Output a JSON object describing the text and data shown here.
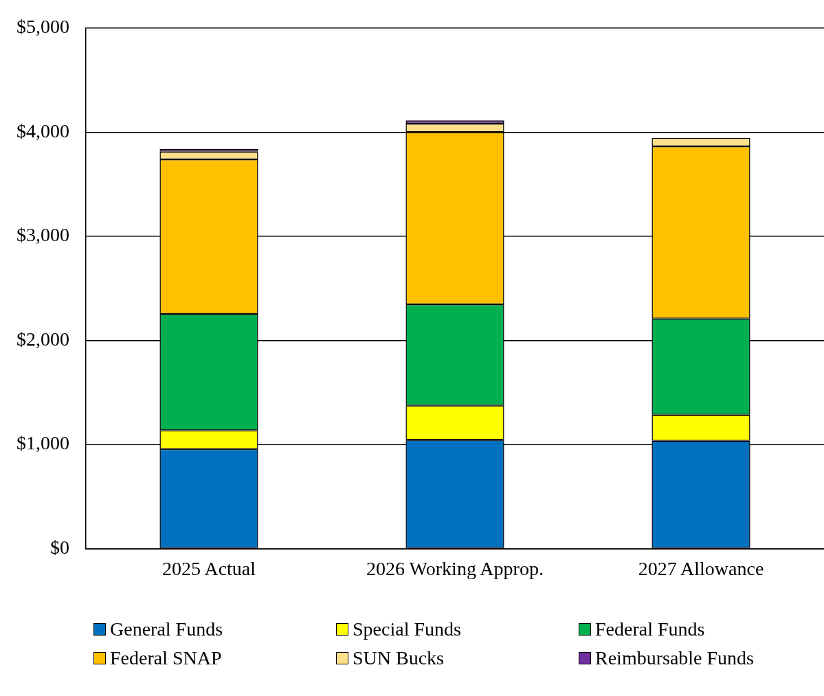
{
  "chart_data": {
    "type": "bar",
    "stacked": true,
    "categories": [
      "2025 Actual",
      "2026 Working Approp.",
      "2027 Allowance"
    ],
    "series": [
      {
        "name": "General Funds",
        "color": "#0070c0",
        "values": [
          955,
          1042,
          1036
        ]
      },
      {
        "name": "Special Funds",
        "color": "#ffff00",
        "values": [
          181,
          331,
          249
        ]
      },
      {
        "name": "Federal Funds",
        "color": "#00b050",
        "values": [
          1117,
          973,
          924
        ]
      },
      {
        "name": "Federal SNAP",
        "color": "#ffc000",
        "values": [
          1485,
          1654,
          1654
        ]
      },
      {
        "name": "SUN Bucks",
        "color": "#ffe08a",
        "values": [
          75,
          81,
          81
        ]
      },
      {
        "name": "Reimbursable Funds",
        "color": "#7030a0",
        "values": [
          25,
          31,
          null
        ]
      }
    ],
    "ylim": [
      0,
      5000
    ],
    "yticks": [
      {
        "value": 0,
        "label": "$0"
      },
      {
        "value": 1000,
        "label": "$1,000"
      },
      {
        "value": 2000,
        "label": "$2,000"
      },
      {
        "value": 3000,
        "label": "$3,000"
      },
      {
        "value": 4000,
        "label": "$4,000"
      },
      {
        "value": 5000,
        "label": "$5,000"
      }
    ],
    "grid": "y",
    "legend": "bottom"
  }
}
